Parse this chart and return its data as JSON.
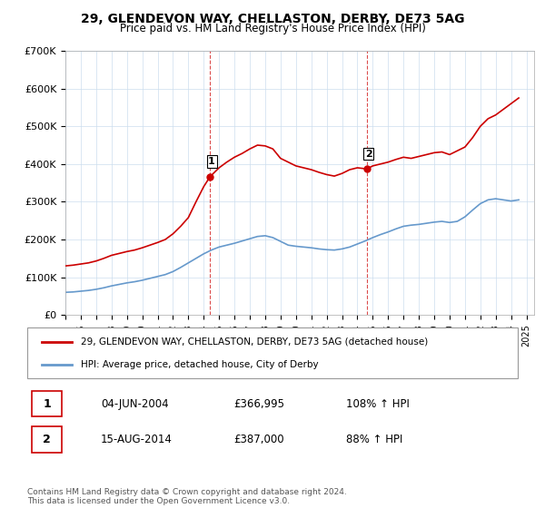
{
  "title": "29, GLENDEVON WAY, CHELLASTON, DERBY, DE73 5AG",
  "subtitle": "Price paid vs. HM Land Registry's House Price Index (HPI)",
  "xlabel": "",
  "ylabel": "",
  "ylim": [
    0,
    700000
  ],
  "xlim_start": 1995.0,
  "xlim_end": 2025.5,
  "yticks": [
    0,
    100000,
    200000,
    300000,
    400000,
    500000,
    600000,
    700000
  ],
  "ytick_labels": [
    "£0",
    "£100K",
    "£200K",
    "£300K",
    "£400K",
    "£500K",
    "£600K",
    "£700K"
  ],
  "red_color": "#cc0000",
  "blue_color": "#6699cc",
  "marker1_x": 2004.42,
  "marker1_y": 366995,
  "marker1_label": "1",
  "marker1_date": "04-JUN-2004",
  "marker1_price": "£366,995",
  "marker1_hpi": "108% ↑ HPI",
  "marker2_x": 2014.62,
  "marker2_y": 387000,
  "marker2_label": "2",
  "marker2_date": "15-AUG-2014",
  "marker2_price": "£387,000",
  "marker2_hpi": "88% ↑ HPI",
  "legend_line1": "29, GLENDEVON WAY, CHELLASTON, DERBY, DE73 5AG (detached house)",
  "legend_line2": "HPI: Average price, detached house, City of Derby",
  "footer": "Contains HM Land Registry data © Crown copyright and database right 2024.\nThis data is licensed under the Open Government Licence v3.0.",
  "red_x": [
    1995.0,
    1995.5,
    1996.0,
    1996.5,
    1997.0,
    1997.5,
    1998.0,
    1998.5,
    1999.0,
    1999.5,
    2000.0,
    2000.5,
    2001.0,
    2001.5,
    2002.0,
    2002.5,
    2003.0,
    2003.5,
    2004.0,
    2004.42,
    2004.5,
    2005.0,
    2005.5,
    2006.0,
    2006.5,
    2007.0,
    2007.5,
    2008.0,
    2008.5,
    2009.0,
    2009.5,
    2010.0,
    2010.5,
    2011.0,
    2011.5,
    2012.0,
    2012.5,
    2013.0,
    2013.5,
    2014.0,
    2014.62,
    2015.0,
    2015.5,
    2016.0,
    2016.5,
    2017.0,
    2017.5,
    2018.0,
    2018.5,
    2019.0,
    2019.5,
    2020.0,
    2020.5,
    2021.0,
    2021.5,
    2022.0,
    2022.5,
    2023.0,
    2023.5,
    2024.0,
    2024.5
  ],
  "red_y": [
    130000,
    132000,
    135000,
    138000,
    143000,
    150000,
    158000,
    163000,
    168000,
    172000,
    178000,
    185000,
    192000,
    200000,
    215000,
    235000,
    258000,
    300000,
    340000,
    366995,
    370000,
    390000,
    405000,
    418000,
    428000,
    440000,
    450000,
    448000,
    440000,
    415000,
    405000,
    395000,
    390000,
    385000,
    378000,
    372000,
    368000,
    375000,
    385000,
    390000,
    387000,
    395000,
    400000,
    405000,
    412000,
    418000,
    415000,
    420000,
    425000,
    430000,
    432000,
    425000,
    435000,
    445000,
    470000,
    500000,
    520000,
    530000,
    545000,
    560000,
    575000
  ],
  "blue_x": [
    1995.0,
    1995.5,
    1996.0,
    1996.5,
    1997.0,
    1997.5,
    1998.0,
    1998.5,
    1999.0,
    1999.5,
    2000.0,
    2000.5,
    2001.0,
    2001.5,
    2002.0,
    2002.5,
    2003.0,
    2003.5,
    2004.0,
    2004.5,
    2005.0,
    2005.5,
    2006.0,
    2006.5,
    2007.0,
    2007.5,
    2008.0,
    2008.5,
    2009.0,
    2009.5,
    2010.0,
    2010.5,
    2011.0,
    2011.5,
    2012.0,
    2012.5,
    2013.0,
    2013.5,
    2014.0,
    2014.5,
    2015.0,
    2015.5,
    2016.0,
    2016.5,
    2017.0,
    2017.5,
    2018.0,
    2018.5,
    2019.0,
    2019.5,
    2020.0,
    2020.5,
    2021.0,
    2021.5,
    2022.0,
    2022.5,
    2023.0,
    2023.5,
    2024.0,
    2024.5
  ],
  "blue_y": [
    60000,
    61000,
    63000,
    65000,
    68000,
    72000,
    77000,
    81000,
    85000,
    88000,
    92000,
    97000,
    102000,
    107000,
    115000,
    126000,
    138000,
    150000,
    162000,
    172000,
    180000,
    185000,
    190000,
    196000,
    202000,
    208000,
    210000,
    205000,
    195000,
    185000,
    182000,
    180000,
    178000,
    175000,
    173000,
    172000,
    175000,
    180000,
    188000,
    196000,
    205000,
    213000,
    220000,
    228000,
    235000,
    238000,
    240000,
    243000,
    246000,
    248000,
    245000,
    248000,
    260000,
    278000,
    295000,
    305000,
    308000,
    305000,
    302000,
    305000
  ]
}
